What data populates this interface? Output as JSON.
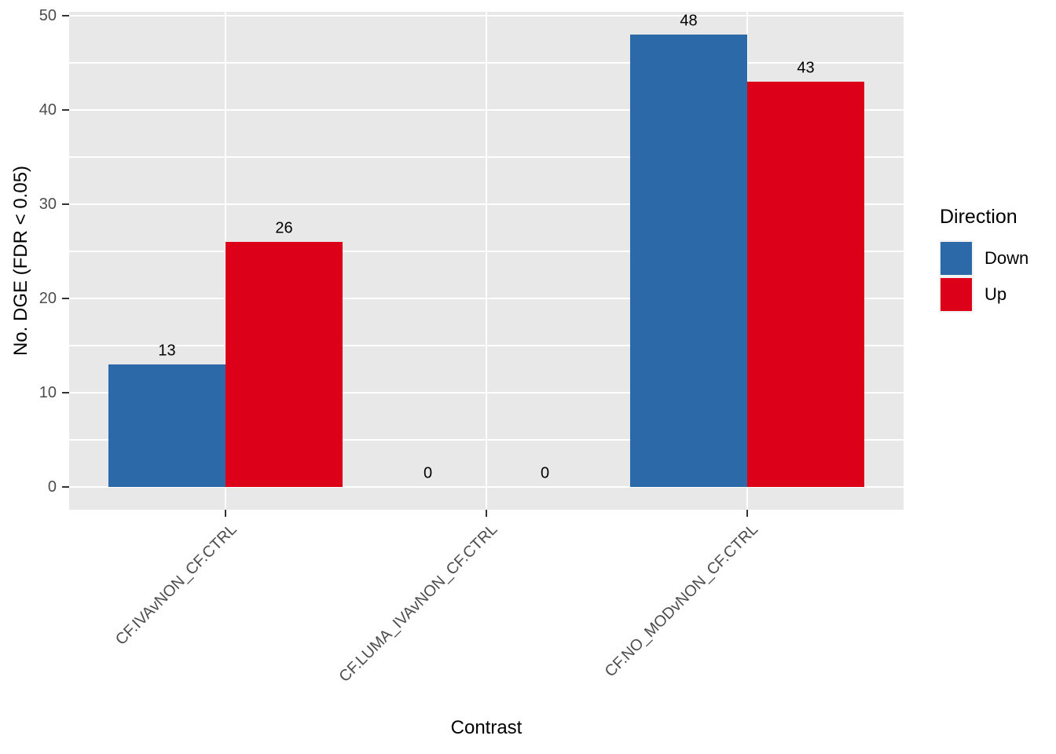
{
  "figure": {
    "background": "#FFFFFF",
    "panel_background": "#E8E8E8",
    "grid_color": "#FFFFFF",
    "axis_text_color": "#4D4D4D",
    "axis_title_color": "#000000",
    "tick_mark_color": "#333333"
  },
  "chart_data": {
    "type": "bar",
    "orientation": "vertical",
    "grouping": "dodge",
    "title": "",
    "xlabel": "Contrast",
    "ylabel": "No. DGE (FDR < 0.05)",
    "categories": [
      "CF.IVAvNON_CF.CTRL",
      "CF.LUMA_IVAvNON_CF.CTRL",
      "CF.NO_MODvNON_CF.CTRL"
    ],
    "series": [
      {
        "name": "Down",
        "color": "#2C69A8",
        "values": [
          13,
          0,
          48
        ]
      },
      {
        "name": "Up",
        "color": "#DC0018",
        "values": [
          26,
          0,
          43
        ]
      }
    ],
    "show_value_labels": true,
    "ylim": [
      0,
      50
    ],
    "yticks": [
      0,
      10,
      20,
      30,
      40,
      50
    ],
    "yticks_minor": [
      5,
      15,
      25,
      35,
      45
    ],
    "grid": "white major+minor horizontal lines, white vertical line at each category center",
    "legend": {
      "title": "Direction",
      "position": "right",
      "entries": [
        "Down",
        "Up"
      ]
    }
  }
}
